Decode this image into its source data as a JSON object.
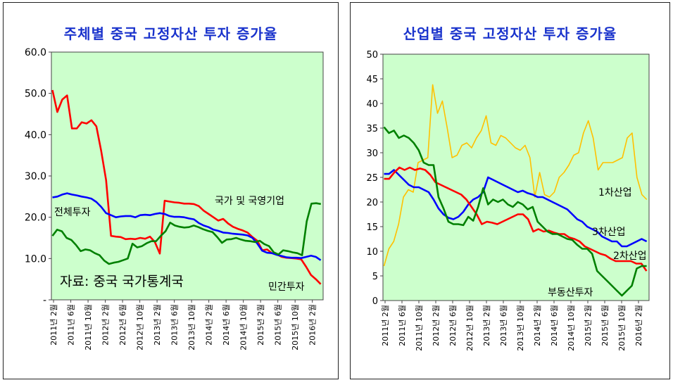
{
  "colors": {
    "plot_bg": "#ccffcc",
    "red": "#ff0000",
    "blue": "#0000ff",
    "green": "#008000",
    "yellow": "#ffc000",
    "title": "#1a33cc"
  },
  "x_tick_labels": [
    "2011년 2월",
    "2011년 6월",
    "2011년 10월",
    "2012년 2월",
    "2012년 6월",
    "2012년 10월",
    "2013년 2월",
    "2013년 6월",
    "2013년 10월",
    "2014년 2월",
    "2014년 6월",
    "2014년 10월",
    "2015년 2월",
    "2015년 6월",
    "2015년 10월",
    "2016년 2월"
  ],
  "chart_data": [
    {
      "type": "line",
      "title": "주체별 중국 고정자산 투자 증가율",
      "ylim": [
        0,
        60
      ],
      "y_ticks": [
        "60.0",
        "50.0",
        "40.0",
        "30.0",
        "20.0",
        "10.0",
        "-"
      ],
      "y_tick_values": [
        60,
        50,
        40,
        30,
        20,
        10,
        0
      ],
      "source_note": "자료: 중국 국가통계국",
      "series": [
        {
          "name": "국가 및 국영기업",
          "color": "red",
          "values": [
            50.8,
            45.5,
            48.5,
            49.5,
            41.5,
            41.5,
            43.0,
            42.7,
            43.5,
            42.0,
            36.0,
            29.0,
            15.5,
            15.3,
            15.2,
            14.7,
            14.8,
            14.7,
            15.0,
            14.8,
            15.3,
            14.0,
            11.2,
            24.0,
            23.8,
            23.6,
            23.5,
            23.3,
            23.3,
            23.2,
            22.7,
            21.6,
            20.8,
            20.0,
            19.2,
            19.6,
            18.5,
            17.7,
            17.2,
            16.8,
            16.3,
            15.2,
            14.3,
            12.0,
            12.2,
            11.3,
            11.0,
            10.4,
            10.2,
            10.1,
            10.0,
            9.8,
            8.0,
            6.0,
            5.0,
            3.8
          ]
        },
        {
          "name": "전체투자",
          "color": "blue",
          "values": [
            24.8,
            25.0,
            25.5,
            25.8,
            25.5,
            25.3,
            25.0,
            24.8,
            24.5,
            23.7,
            22.5,
            21.0,
            20.5,
            20.0,
            20.2,
            20.3,
            20.3,
            20.0,
            20.5,
            20.6,
            20.5,
            20.8,
            21.0,
            20.8,
            20.3,
            20.1,
            20.1,
            20.0,
            19.7,
            19.5,
            18.6,
            18.0,
            17.6,
            17.0,
            16.7,
            16.3,
            16.2,
            16.0,
            15.9,
            15.8,
            15.6,
            15.0,
            13.6,
            11.9,
            11.4,
            11.3,
            10.9,
            10.6,
            10.3,
            10.2,
            10.2,
            10.1,
            10.4,
            10.7,
            10.4,
            9.6
          ]
        },
        {
          "name": "민간투자",
          "color": "green",
          "values": [
            15.5,
            17.0,
            16.6,
            15.0,
            14.5,
            13.3,
            11.8,
            12.2,
            12.0,
            11.3,
            10.8,
            9.5,
            8.7,
            9.0,
            9.2,
            9.6,
            10.0,
            13.6,
            12.7,
            13.0,
            13.7,
            14.2,
            14.2,
            15.5,
            16.6,
            18.7,
            18.0,
            17.7,
            17.5,
            17.6,
            18.0,
            17.6,
            17.1,
            16.7,
            16.4,
            15.2,
            13.8,
            14.6,
            14.7,
            15.0,
            14.6,
            14.3,
            14.2,
            14.0,
            14.3,
            13.5,
            13.0,
            11.5,
            11.0,
            12.0,
            11.8,
            11.5,
            11.3,
            10.8,
            19.0,
            23.3,
            23.4,
            23.2
          ]
        }
      ],
      "annotations": [
        "국가 및 국영기업",
        "전체투자",
        "민간투자"
      ]
    },
    {
      "type": "line",
      "title": "산업별 중국 고정자산 투자 증가율",
      "ylim": [
        0,
        50
      ],
      "y_ticks": [
        "50",
        "45",
        "40",
        "35",
        "30",
        "25",
        "20",
        "15",
        "10",
        "5",
        "0"
      ],
      "y_tick_values": [
        50,
        45,
        40,
        35,
        30,
        25,
        20,
        15,
        10,
        5,
        0
      ],
      "series": [
        {
          "name": "1차산업",
          "color": "yellow",
          "values": [
            7.0,
            10.5,
            12.0,
            15.5,
            21.0,
            22.5,
            22.0,
            28.0,
            28.5,
            29.0,
            43.8,
            38.0,
            40.5,
            35.0,
            29.0,
            29.5,
            31.5,
            32.0,
            31.0,
            33.0,
            34.5,
            37.5,
            32.0,
            31.5,
            33.5,
            33.0,
            32.0,
            31.0,
            30.5,
            31.5,
            29.0,
            21.0,
            26.0,
            21.5,
            21.0,
            22.0,
            25.0,
            26.0,
            27.5,
            29.5,
            30.0,
            34.0,
            36.5,
            33.0,
            26.5,
            28.0,
            28.0,
            28.0,
            28.5,
            29.0,
            33.0,
            34.0,
            25.0,
            21.5,
            20.5
          ]
        },
        {
          "name": "3차산업",
          "color": "blue",
          "values": [
            25.7,
            25.7,
            26.5,
            25.5,
            24.5,
            23.5,
            23.0,
            23.0,
            22.5,
            22.0,
            20.5,
            18.7,
            17.5,
            16.8,
            16.5,
            17.0,
            18.0,
            19.5,
            20.5,
            21.0,
            22.0,
            25.0,
            24.5,
            24.0,
            23.5,
            23.0,
            22.5,
            22.0,
            22.3,
            21.8,
            21.5,
            21.0,
            21.0,
            20.5,
            20.0,
            19.5,
            19.0,
            18.5,
            17.5,
            16.5,
            16.0,
            15.0,
            14.5,
            14.0,
            13.0,
            12.5,
            12.0,
            12.0,
            11.0,
            11.0,
            11.5,
            12.0,
            12.5,
            12.0
          ]
        },
        {
          "name": "2차산업",
          "color": "red",
          "values": [
            24.7,
            24.7,
            26.0,
            27.0,
            26.5,
            27.0,
            26.5,
            26.8,
            26.5,
            25.5,
            24.0,
            23.5,
            23.0,
            22.5,
            22.0,
            21.5,
            20.5,
            19.0,
            17.5,
            15.5,
            16.0,
            15.8,
            15.5,
            16.0,
            16.5,
            17.0,
            17.5,
            17.5,
            16.5,
            14.0,
            14.5,
            14.0,
            14.2,
            13.8,
            13.5,
            13.5,
            12.8,
            12.5,
            12.0,
            11.0,
            10.5,
            10.0,
            9.5,
            9.2,
            8.5,
            8.0,
            8.0,
            8.0,
            8.0,
            7.5,
            7.5,
            6.0
          ]
        },
        {
          "name": "부동산투자",
          "color": "green",
          "values": [
            35.2,
            34.0,
            34.5,
            33.0,
            33.5,
            33.0,
            32.0,
            30.5,
            28.0,
            27.5,
            27.5,
            21.0,
            18.7,
            16.0,
            15.5,
            15.5,
            15.3,
            17.0,
            16.2,
            19.0,
            22.8,
            19.5,
            20.5,
            20.0,
            20.5,
            19.5,
            19.0,
            20.0,
            19.5,
            18.5,
            19.0,
            16.0,
            15.0,
            14.0,
            13.5,
            13.5,
            13.0,
            12.5,
            12.3,
            11.3,
            10.5,
            10.5,
            9.5,
            6.0,
            5.0,
            4.0,
            3.0,
            2.0,
            1.0,
            2.0,
            3.0,
            6.5,
            7.0,
            7.0
          ]
        }
      ],
      "annotations": [
        "1차산업",
        "3차산업",
        "2차산업",
        "부동산투자"
      ]
    }
  ]
}
